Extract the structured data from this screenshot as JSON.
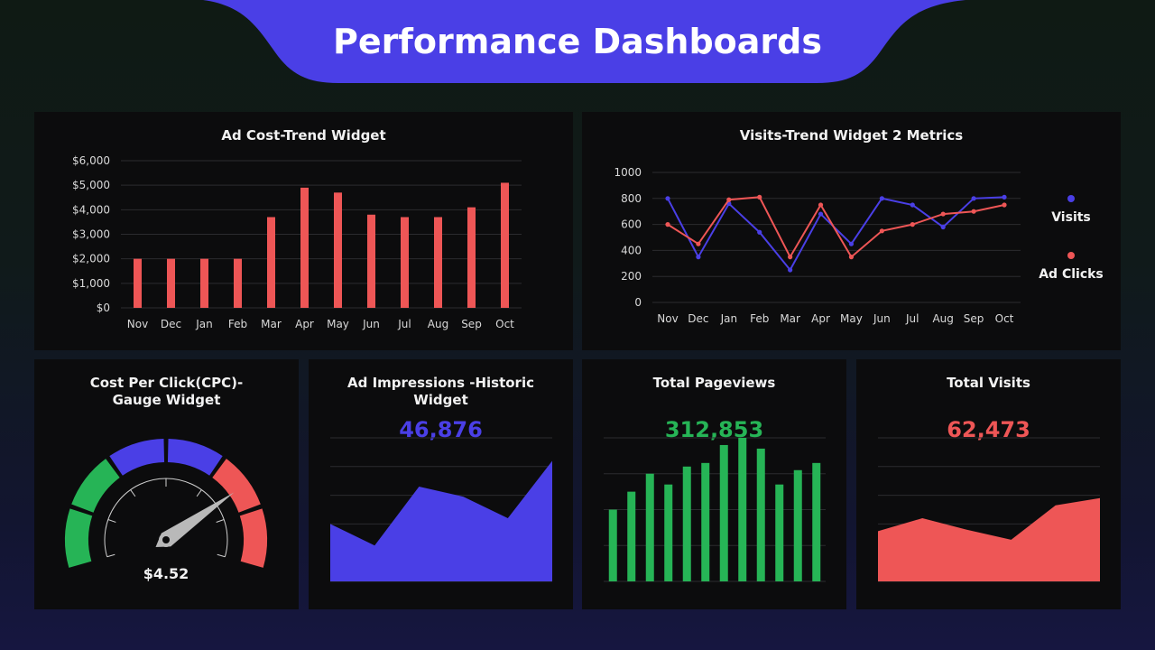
{
  "page": {
    "title": "Performance Dashboards",
    "colors": {
      "accent": "#4a3fe6",
      "red": "#ee5656",
      "green": "#26b456",
      "panel": "#0c0c0d"
    }
  },
  "chart_data": [
    {
      "id": "ad-cost",
      "type": "bar",
      "title": "Ad Cost-Trend Widget",
      "categories": [
        "Nov",
        "Dec",
        "Jan",
        "Feb",
        "Mar",
        "Apr",
        "May",
        "Jun",
        "Jul",
        "Aug",
        "Sep",
        "Oct"
      ],
      "values": [
        2000,
        2000,
        2000,
        2000,
        3700,
        4900,
        4700,
        3800,
        3700,
        3700,
        4100,
        5100
      ],
      "ylim": [
        0,
        6000
      ],
      "yticks": [
        0,
        1000,
        2000,
        3000,
        4000,
        5000,
        6000
      ],
      "ytick_labels": [
        "$0",
        "$1,000",
        "$2,000",
        "$3,000",
        "$4,000",
        "$5,000",
        "$6,000"
      ],
      "grid": true,
      "color": "#ee5656"
    },
    {
      "id": "visits-trend",
      "type": "line",
      "title": "Visits-Trend Widget 2 Metrics",
      "categories": [
        "Nov",
        "Dec",
        "Jan",
        "Feb",
        "Mar",
        "Apr",
        "May",
        "Jun",
        "Jul",
        "Aug",
        "Sep",
        "Oct"
      ],
      "series": [
        {
          "name": "Visits",
          "color": "#4a3fe6",
          "values": [
            800,
            350,
            760,
            540,
            250,
            680,
            450,
            800,
            750,
            580,
            800,
            810
          ]
        },
        {
          "name": "Ad Clicks",
          "color": "#ee5656",
          "values": [
            600,
            450,
            790,
            810,
            350,
            750,
            350,
            550,
            600,
            680,
            700,
            750
          ]
        }
      ],
      "ylim": [
        0,
        1000
      ],
      "yticks": [
        0,
        200,
        400,
        600,
        800,
        1000
      ],
      "ytick_labels": [
        "0",
        "200",
        "400",
        "600",
        "800",
        "1000"
      ],
      "grid": true,
      "legend": "right"
    },
    {
      "id": "cpc-gauge",
      "type": "gauge",
      "title": "Cost Per Click(CPC)-\nGauge Widget",
      "value_label": "$4.52",
      "needle_fraction": 0.76,
      "segment_colors": [
        "#26b456",
        "#26b456",
        "#4a3fe6",
        "#4a3fe6",
        "#ee5656",
        "#ee5656"
      ]
    },
    {
      "id": "ad-impressions",
      "type": "area",
      "title": "Ad Impressions -Historic\nWidget",
      "total_label": "46,876",
      "values": [
        40,
        25,
        66,
        59,
        44,
        84
      ],
      "ylim": [
        0,
        100
      ],
      "grid": true,
      "color": "#4a3fe6"
    },
    {
      "id": "total-pageviews",
      "type": "bar",
      "title": "Total Pageviews",
      "total_label": "312,853",
      "values": [
        40,
        50,
        60,
        54,
        64,
        66,
        76,
        80,
        74,
        54,
        62,
        66
      ],
      "ylim": [
        0,
        80
      ],
      "grid": true,
      "color": "#26b456"
    },
    {
      "id": "total-visits",
      "type": "area",
      "title": "Total Visits",
      "total_label": "62,473",
      "values": [
        35,
        44,
        36,
        29,
        53,
        58
      ],
      "ylim": [
        0,
        100
      ],
      "grid": true,
      "color": "#ee5656"
    }
  ]
}
